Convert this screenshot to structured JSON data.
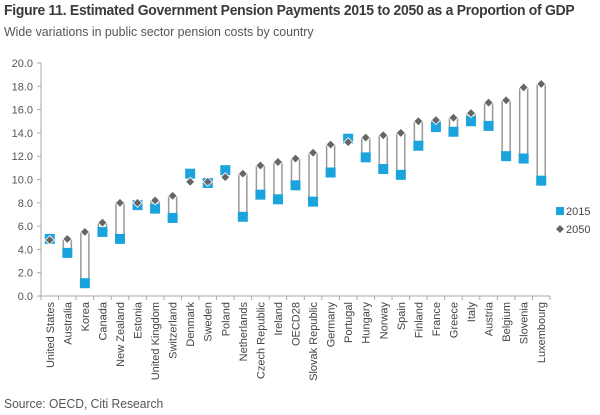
{
  "header": {
    "title": "Figure 11. Estimated Government Pension Payments 2015 to 2050 as a Proportion of GDP",
    "subtitle": "Wide variations in public sector pension costs by country"
  },
  "footer": {
    "source": "Source: OECD, Citi Research"
  },
  "colors": {
    "series_2015": "#1aa3dc",
    "series_2050": "#666666",
    "range_bar_stroke": "#999999",
    "axis": "#aaaaaa"
  },
  "chart_data": {
    "type": "scatter",
    "title": "Figure 11. Estimated Government Pension Payments 2015 to 2050 as a Proportion of GDP",
    "subtitle": "Wide variations in public sector pension costs by country",
    "xlabel": "",
    "ylabel": "",
    "ylim": [
      0,
      20
    ],
    "yticks": [
      "0.0",
      "2.0",
      "4.0",
      "6.0",
      "8.0",
      "10.0",
      "12.0",
      "14.0",
      "16.0",
      "18.0",
      "20.0"
    ],
    "grid": false,
    "legend_position": "right",
    "categories": [
      "United States",
      "Australia",
      "Korea",
      "Canada",
      "New Zealand",
      "Estonia",
      "United Kingdom",
      "Switzerland",
      "Denmark",
      "Sweden",
      "Poland",
      "Netherlands",
      "Czech Republic",
      "Ireland",
      "OECD28",
      "Slovak Republic",
      "Germany",
      "Portugal",
      "Hungary",
      "Norway",
      "Spain",
      "Finland",
      "France",
      "Greece",
      "Italy",
      "Austria",
      "Belgium",
      "Slovenia",
      "Luxembourg"
    ],
    "series": [
      {
        "name": "2015",
        "marker": "square",
        "values": [
          4.9,
          3.7,
          1.1,
          5.5,
          4.9,
          7.8,
          7.5,
          6.7,
          10.5,
          9.7,
          10.8,
          6.8,
          8.7,
          8.3,
          9.5,
          8.1,
          10.6,
          13.5,
          11.9,
          10.9,
          10.4,
          12.9,
          14.5,
          14.1,
          15.0,
          14.6,
          12.0,
          11.8,
          9.9
        ]
      },
      {
        "name": "2050",
        "marker": "diamond",
        "values": [
          4.8,
          4.9,
          5.5,
          6.3,
          8.0,
          8.0,
          8.2,
          8.6,
          9.8,
          9.8,
          10.2,
          10.5,
          11.2,
          11.5,
          11.8,
          12.3,
          13.0,
          13.2,
          13.6,
          13.8,
          14.0,
          15.0,
          15.1,
          15.3,
          15.7,
          16.6,
          16.8,
          17.9,
          18.2
        ]
      }
    ],
    "source": "Source: OECD, Citi Research"
  }
}
